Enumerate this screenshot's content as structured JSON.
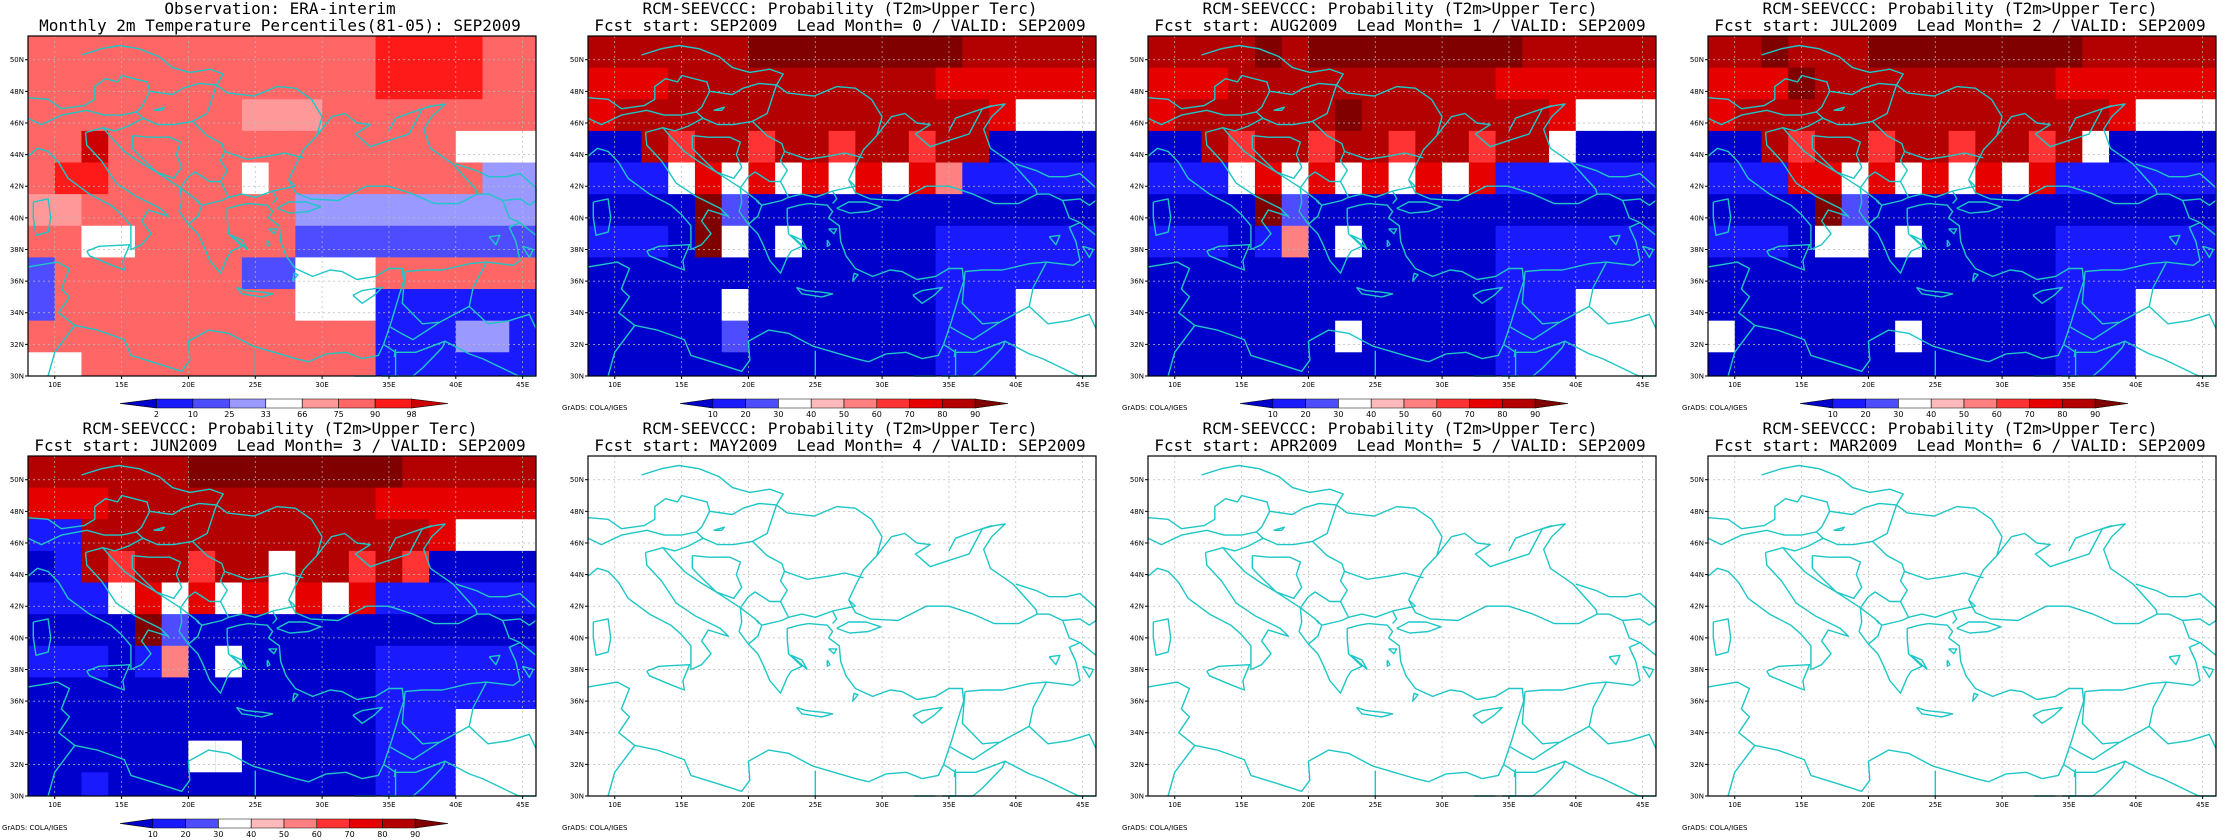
{
  "panels": [
    {
      "title1": "Observation: ERA-interim",
      "title2": "Monthly 2m Temperature Percentiles(81-05): SEP2009",
      "scale": "obs",
      "credit": "",
      "has_data": true
    },
    {
      "title1": "RCM-SEEVCCC: Probability (T2m>Upper Terc)",
      "title2": "Fcst start: SEP2009  Lead Month= 0 / VALID: SEP2009",
      "scale": "prob",
      "credit": "GrADS: COLA/IGES",
      "has_data": true
    },
    {
      "title1": "RCM-SEEVCCC: Probability (T2m>Upper Terc)",
      "title2": "Fcst start: AUG2009  Lead Month= 1 / VALID: SEP2009",
      "scale": "prob",
      "credit": "GrADS: COLA/IGES",
      "has_data": true
    },
    {
      "title1": "RCM-SEEVCCC: Probability (T2m>Upper Terc)",
      "title2": "Fcst start: JUL2009  Lead Month= 2 / VALID: SEP2009",
      "scale": "prob",
      "credit": "GrADS: COLA/IGES",
      "has_data": true
    },
    {
      "title1": "RCM-SEEVCCC: Probability (T2m>Upper Terc)",
      "title2": "Fcst start: JUN2009  Lead Month= 3 / VALID: SEP2009",
      "scale": "prob",
      "credit": "GrADS: COLA/IGES",
      "has_data": true
    },
    {
      "title1": "RCM-SEEVCCC: Probability (T2m>Upper Terc)",
      "title2": "Fcst start: MAY2009  Lead Month= 4 / VALID: SEP2009",
      "scale": "none",
      "credit": "GrADS: COLA/IGES",
      "has_data": false
    },
    {
      "title1": "RCM-SEEVCCC: Probability (T2m>Upper Terc)",
      "title2": "Fcst start: APR2009  Lead Month= 5 / VALID: SEP2009",
      "scale": "none",
      "credit": "GrADS: COLA/IGES",
      "has_data": false
    },
    {
      "title1": "RCM-SEEVCCC: Probability (T2m>Upper Terc)",
      "title2": "Fcst start: MAR2009  Lead Month= 6 / VALID: SEP2009",
      "scale": "none",
      "credit": "GrADS: COLA/IGES",
      "has_data": false
    }
  ],
  "map": {
    "lon_labels": [
      "10E",
      "15E",
      "20E",
      "25E",
      "30E",
      "35E",
      "40E",
      "45E"
    ],
    "lat_labels": [
      "50N",
      "48N",
      "46N",
      "44N",
      "42N",
      "40N",
      "38N",
      "36N",
      "34N",
      "32N",
      "30N"
    ],
    "coast_color": "#1fc6c6",
    "grid_color": "#bbbbbb"
  },
  "colorbars": {
    "obs": {
      "labels": [
        "2",
        "10",
        "25",
        "33",
        "66",
        "75",
        "90",
        "98"
      ],
      "colors": [
        "#0000cc",
        "#1a1aff",
        "#4d4dff",
        "#9999ff",
        "#ffffff",
        "#ff9999",
        "#ff6666",
        "#ff1a1a",
        "#cc0000"
      ]
    },
    "prob": {
      "labels": [
        "10",
        "20",
        "30",
        "40",
        "50",
        "60",
        "70",
        "80",
        "90"
      ],
      "colors": [
        "#0000cc",
        "#1a1aff",
        "#4d4dff",
        "#ffffff",
        "#ffbbbb",
        "#ff8080",
        "#ff3333",
        "#e60000",
        "#b30000",
        "#800000"
      ]
    }
  }
}
